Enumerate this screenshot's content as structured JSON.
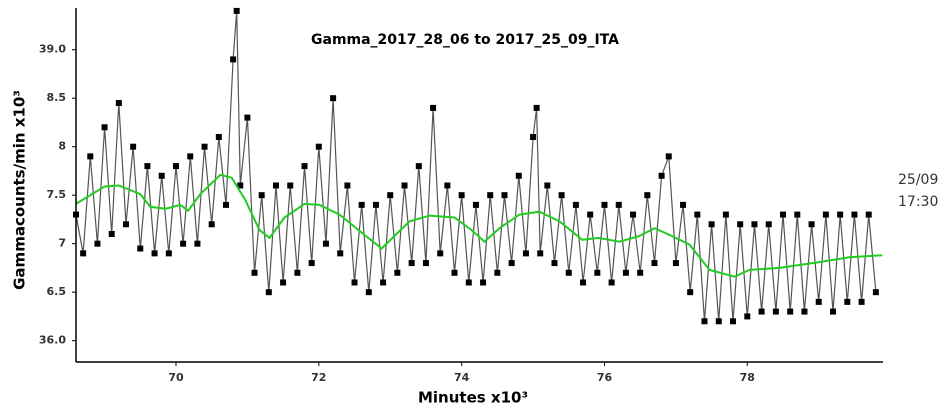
{
  "chart_data": {
    "type": "scatter",
    "title": "Gamma_2017_28_06 to 2017_25_09_ITA",
    "x_label": "Minutes x10³",
    "y_label": "Gammacounts/min  x10³",
    "annotation": [
      "25/09",
      "17:30"
    ],
    "xlim": [
      68.6,
      79.9
    ],
    "ylim": [
      5.78,
      9.43
    ],
    "xticks": [
      70,
      72,
      74,
      76,
      78
    ],
    "yticks": [
      {
        "value": 6,
        "label": "36.0"
      },
      6.5,
      7.0,
      7.5,
      8.0,
      8.5,
      {
        "value": 9,
        "label": "39.0"
      }
    ],
    "series": [
      {
        "color": "#000000",
        "x": [
          68.6,
          68.7,
          68.8,
          68.9,
          69.0,
          69.1,
          69.2,
          69.3,
          69.4,
          69.5,
          69.6,
          69.7,
          69.8,
          69.9,
          70.0,
          70.1,
          70.2,
          70.3,
          70.4,
          70.5,
          70.6,
          70.7,
          70.8,
          70.85,
          70.9,
          71.0,
          71.1,
          71.2,
          71.3,
          71.4,
          71.5,
          71.6,
          71.7,
          71.8,
          71.9,
          72.0,
          72.1,
          72.2,
          72.3,
          72.4,
          72.5,
          72.6,
          72.7,
          72.8,
          72.9,
          73.0,
          73.1,
          73.2,
          73.3,
          73.4,
          73.5,
          73.6,
          73.7,
          73.8,
          73.9,
          74.0,
          74.1,
          74.2,
          74.3,
          74.4,
          74.5,
          74.6,
          74.7,
          74.8,
          74.9,
          75.0,
          75.05,
          75.1,
          75.2,
          75.3,
          75.4,
          75.5,
          75.6,
          75.7,
          75.8,
          75.9,
          76.0,
          76.1,
          76.2,
          76.3,
          76.4,
          76.5,
          76.6,
          76.7,
          76.8,
          76.9,
          77.0,
          77.1,
          77.2,
          77.3,
          77.4,
          77.5,
          77.6,
          77.7,
          77.8,
          77.9,
          78.0,
          78.1,
          78.2,
          78.3,
          78.4,
          78.5,
          78.6,
          78.7,
          78.8,
          78.9,
          79.0,
          79.1,
          79.2,
          79.3,
          79.4,
          79.5,
          79.6,
          79.7,
          79.8
        ],
        "y": [
          7.3,
          6.9,
          7.9,
          7.0,
          8.2,
          7.1,
          8.45,
          7.2,
          8.0,
          6.95,
          7.8,
          6.9,
          7.7,
          6.9,
          7.8,
          7.0,
          7.9,
          7.0,
          8.0,
          7.2,
          8.1,
          7.4,
          8.9,
          9.4,
          7.6,
          8.3,
          6.7,
          7.5,
          6.5,
          7.6,
          6.6,
          7.6,
          6.7,
          7.8,
          6.8,
          8.0,
          7.0,
          8.5,
          6.9,
          7.6,
          6.6,
          7.4,
          6.5,
          7.4,
          6.6,
          7.5,
          6.7,
          7.6,
          6.8,
          7.8,
          6.8,
          8.4,
          6.9,
          7.6,
          6.7,
          7.5,
          6.6,
          7.4,
          6.6,
          7.5,
          6.7,
          7.5,
          6.8,
          7.7,
          6.9,
          8.1,
          8.4,
          6.9,
          7.6,
          6.8,
          7.5,
          6.7,
          7.4,
          6.6,
          7.3,
          6.7,
          7.4,
          6.6,
          7.4,
          6.7,
          7.3,
          6.7,
          7.5,
          6.8,
          7.7,
          7.9,
          6.8,
          7.4,
          6.5,
          7.3,
          6.2,
          7.2,
          6.2,
          7.3,
          6.2,
          7.2,
          6.25,
          7.2,
          6.3,
          7.2,
          6.3,
          7.3,
          6.3,
          7.3,
          6.3,
          7.2,
          6.4,
          7.3,
          6.3,
          7.3,
          6.4,
          7.3,
          6.4,
          7.3,
          6.5
        ]
      },
      {
        "color": "#22cc22",
        "line": true,
        "x": [
          68.6,
          69.0,
          69.2,
          69.5,
          69.64,
          69.85,
          70.06,
          70.17,
          70.34,
          70.62,
          70.78,
          70.97,
          71.17,
          71.31,
          71.52,
          71.8,
          72.01,
          72.29,
          72.64,
          72.88,
          73.06,
          73.27,
          73.55,
          73.9,
          74.14,
          74.32,
          74.53,
          74.81,
          75.09,
          75.37,
          75.69,
          75.92,
          76.21,
          76.49,
          76.7,
          76.91,
          77.19,
          77.47,
          77.82,
          78.03,
          78.45,
          79.01,
          79.43,
          79.89
        ],
        "y": [
          7.41,
          7.59,
          7.6,
          7.51,
          7.38,
          7.36,
          7.4,
          7.34,
          7.51,
          7.71,
          7.68,
          7.45,
          7.14,
          7.06,
          7.27,
          7.41,
          7.4,
          7.3,
          7.09,
          6.95,
          7.08,
          7.23,
          7.29,
          7.27,
          7.14,
          7.02,
          7.16,
          7.3,
          7.33,
          7.23,
          7.04,
          7.06,
          7.02,
          7.08,
          7.16,
          7.09,
          6.99,
          6.73,
          6.66,
          6.73,
          6.75,
          6.81,
          6.86,
          6.88
        ]
      }
    ]
  }
}
